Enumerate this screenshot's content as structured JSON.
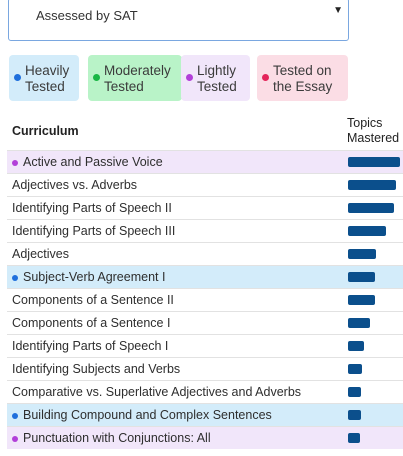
{
  "filter": {
    "selected": "Assessed by SAT",
    "caret": "▼"
  },
  "legend": [
    {
      "label_line1": "Heavily",
      "label_line2": "Tested",
      "bg": "#d3ecfa",
      "dot": "#1f6fdc"
    },
    {
      "label_line1": "Moderately",
      "label_line2": "Tested",
      "bg": "#b9f3c8",
      "dot": "#19b645"
    },
    {
      "label_line1": "Lightly",
      "label_line2": "Tested",
      "bg": "#f1e6fa",
      "dot": "#b23fd9"
    },
    {
      "label_line1": "Tested on",
      "label_line2": "the Essay",
      "bg": "#fbdde5",
      "dot": "#e4245a"
    }
  ],
  "table": {
    "col_curriculum": "Curriculum",
    "col_topics_line1": "Topics",
    "col_topics_line2": "Mastered",
    "bar_color": "#0b4f8c",
    "rows": [
      {
        "name": "Active and Passive Voice",
        "mastered": 1.0,
        "tag": "lightly"
      },
      {
        "name": "Adjectives vs. Adverbs",
        "mastered": 0.92,
        "tag": ""
      },
      {
        "name": "Identifying Parts of Speech II",
        "mastered": 0.88,
        "tag": ""
      },
      {
        "name": "Identifying Parts of Speech III",
        "mastered": 0.73,
        "tag": ""
      },
      {
        "name": "Adjectives",
        "mastered": 0.54,
        "tag": ""
      },
      {
        "name": "Subject-Verb Agreement I",
        "mastered": 0.52,
        "tag": "heavily"
      },
      {
        "name": "Components of a Sentence II",
        "mastered": 0.52,
        "tag": ""
      },
      {
        "name": "Components of a Sentence I",
        "mastered": 0.42,
        "tag": ""
      },
      {
        "name": "Identifying Parts of Speech I",
        "mastered": 0.31,
        "tag": ""
      },
      {
        "name": "Identifying Subjects and Verbs",
        "mastered": 0.27,
        "tag": ""
      },
      {
        "name": "Comparative vs. Superlative Adjectives and Adverbs",
        "mastered": 0.25,
        "tag": ""
      },
      {
        "name": "Building Compound and Complex Sentences",
        "mastered": 0.25,
        "tag": "heavily"
      },
      {
        "name": "Punctuation with Conjunctions: All",
        "mastered": 0.23,
        "tag": "lightly"
      }
    ]
  }
}
